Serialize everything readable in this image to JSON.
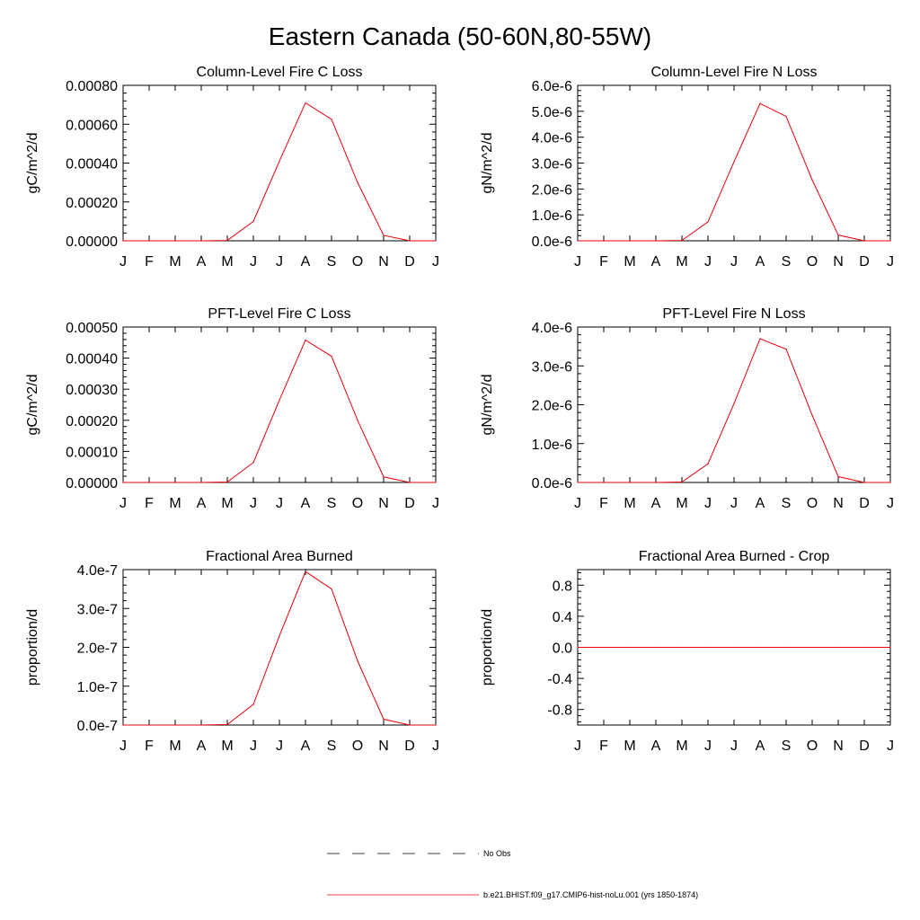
{
  "figure": {
    "title": "Eastern Canada (50-60N,80-55W)"
  },
  "colors": {
    "series": "#e8000b",
    "axis": "#000000",
    "obs": "#000000"
  },
  "legend": {
    "placement": "bottom-center",
    "entries": [
      {
        "label": "No Obs",
        "style": "dashed"
      },
      {
        "label": "b.e21.BHIST.f09_g17.CMIP6-hist-noLu.001 (yrs 1850-1874)",
        "style": "solid"
      }
    ]
  },
  "chart_data": [
    {
      "type": "line",
      "title": "Column-Level Fire C Loss",
      "ylabel": "gC/m^2/d",
      "x": [
        "J",
        "F",
        "M",
        "A",
        "M",
        "J",
        "J",
        "A",
        "S",
        "O",
        "N",
        "D",
        "J"
      ],
      "ylim": [
        0,
        0.0008
      ],
      "yticks": [
        0,
        0.0002,
        0.0004,
        0.0006,
        0.0008
      ],
      "ytick_labels": [
        "0.00000",
        "0.00020",
        "0.00040",
        "0.00060",
        "0.00080"
      ],
      "series": [
        {
          "name": "b.e21.BHIST.f09_g17.CMIP6-hist-noLu.001 (yrs 1850-1874)",
          "values": [
            0,
            0,
            0,
            0,
            2e-06,
            0.0001,
            0.00041,
            0.00071,
            0.000625,
            0.0003,
            2.8e-05,
            0,
            0
          ]
        }
      ]
    },
    {
      "type": "line",
      "title": "Column-Level Fire N Loss",
      "ylabel": "gN/m^2/d",
      "x": [
        "J",
        "F",
        "M",
        "A",
        "M",
        "J",
        "J",
        "A",
        "S",
        "O",
        "N",
        "D",
        "J"
      ],
      "ylim": [
        0,
        6e-06
      ],
      "yticks": [
        0,
        1e-06,
        2e-06,
        3e-06,
        4e-06,
        5e-06,
        6e-06
      ],
      "ytick_labels": [
        "0.0e-6",
        "1.0e-6",
        "2.0e-6",
        "3.0e-6",
        "4.0e-6",
        "5.0e-6",
        "6.0e-6"
      ],
      "series": [
        {
          "name": "b.e21.BHIST.f09_g17.CMIP6-hist-noLu.001 (yrs 1850-1874)",
          "values": [
            0,
            0,
            0,
            0,
            1.5e-08,
            7.3e-07,
            3.05e-06,
            5.3e-06,
            4.8e-06,
            2.35e-06,
            2.2e-07,
            0,
            0
          ]
        }
      ]
    },
    {
      "type": "line",
      "title": "PFT-Level Fire C Loss",
      "ylabel": "gC/m^2/d",
      "x": [
        "J",
        "F",
        "M",
        "A",
        "M",
        "J",
        "J",
        "A",
        "S",
        "O",
        "N",
        "D",
        "J"
      ],
      "ylim": [
        0,
        0.0005
      ],
      "yticks": [
        0,
        0.0001,
        0.0002,
        0.0003,
        0.0004,
        0.0005
      ],
      "ytick_labels": [
        "0.00000",
        "0.00010",
        "0.00020",
        "0.00030",
        "0.00040",
        "0.00050"
      ],
      "series": [
        {
          "name": "b.e21.BHIST.f09_g17.CMIP6-hist-noLu.001 (yrs 1850-1874)",
          "values": [
            0,
            0,
            0,
            0,
            1.5e-06,
            6.4e-05,
            0.000265,
            0.000458,
            0.000406,
            0.0002,
            1.8e-05,
            0,
            0
          ]
        }
      ]
    },
    {
      "type": "line",
      "title": "PFT-Level Fire N Loss",
      "ylabel": "gN/m^2/d",
      "x": [
        "J",
        "F",
        "M",
        "A",
        "M",
        "J",
        "J",
        "A",
        "S",
        "O",
        "N",
        "D",
        "J"
      ],
      "ylim": [
        0,
        4e-06
      ],
      "yticks": [
        0,
        1e-06,
        2e-06,
        3e-06,
        4e-06
      ],
      "ytick_labels": [
        "0.0e-6",
        "1.0e-6",
        "2.0e-6",
        "3.0e-6",
        "4.0e-6"
      ],
      "series": [
        {
          "name": "b.e21.BHIST.f09_g17.CMIP6-hist-noLu.001 (yrs 1850-1874)",
          "values": [
            0,
            0,
            0,
            0,
            1.2e-08,
            4.8e-07,
            2.03e-06,
            3.7e-06,
            3.43e-06,
            1.73e-06,
            1.5e-07,
            0,
            0
          ]
        }
      ]
    },
    {
      "type": "line",
      "title": "Fractional Area Burned",
      "ylabel": "proportion/d",
      "x": [
        "J",
        "F",
        "M",
        "A",
        "M",
        "J",
        "J",
        "A",
        "S",
        "O",
        "N",
        "D",
        "J"
      ],
      "ylim": [
        0,
        4e-07
      ],
      "yticks": [
        0,
        1e-07,
        2e-07,
        3e-07,
        4e-07
      ],
      "ytick_labels": [
        "0.0e-7",
        "1.0e-7",
        "2.0e-7",
        "3.0e-7",
        "4.0e-7"
      ],
      "series": [
        {
          "name": "b.e21.BHIST.f09_g17.CMIP6-hist-noLu.001 (yrs 1850-1874)",
          "values": [
            0,
            0,
            0,
            0,
            1.5e-09,
            5.3e-08,
            2.3e-07,
            3.95e-07,
            3.5e-07,
            1.65e-07,
            1.5e-08,
            0,
            0
          ]
        }
      ]
    },
    {
      "type": "line",
      "title": "Fractional Area Burned - Crop",
      "ylabel": "proportion/d",
      "x": [
        "J",
        "F",
        "M",
        "A",
        "M",
        "J",
        "J",
        "A",
        "S",
        "O",
        "N",
        "D",
        "J"
      ],
      "ylim": [
        -1,
        1
      ],
      "yticks": [
        -0.8,
        -0.4,
        0,
        0.4,
        0.8
      ],
      "ytick_labels": [
        "-0.8",
        "-0.4",
        "0.0",
        "0.4",
        "0.8"
      ],
      "series": [
        {
          "name": "b.e21.BHIST.f09_g17.CMIP6-hist-noLu.001 (yrs 1850-1874)",
          "values": [
            0,
            0,
            0,
            0,
            0,
            0,
            0,
            0,
            0,
            0,
            0,
            0,
            0
          ]
        }
      ]
    }
  ]
}
